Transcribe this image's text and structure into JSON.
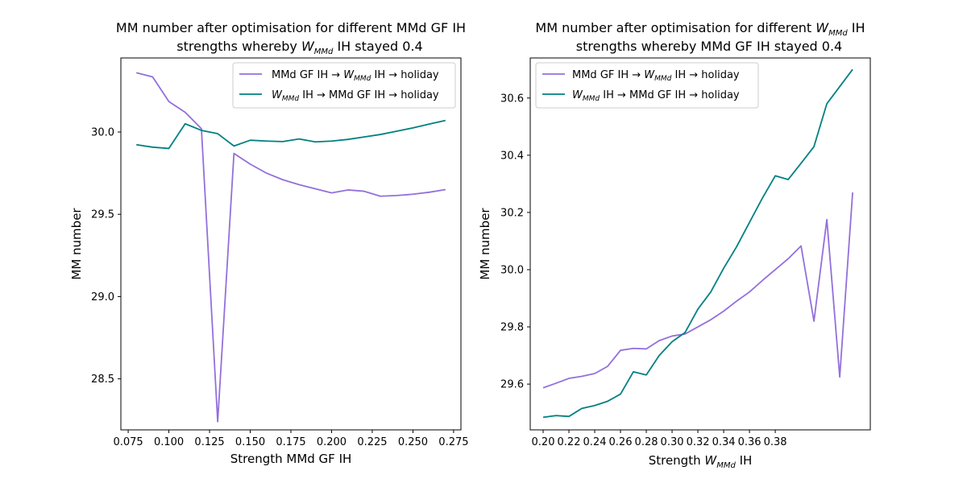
{
  "chart_data": [
    {
      "type": "line",
      "title": [
        "MM number after optimisation for different MMd GF IH",
        "strengths whereby W_MMd IH stayed 0.4"
      ],
      "xlabel": "Strength MMd GF IH",
      "ylabel": "MM number",
      "xlim": [
        0.0705,
        0.2795
      ],
      "ylim": [
        28.19,
        30.45
      ],
      "xticks": [
        "0.075",
        "0.100",
        "0.125",
        "0.150",
        "0.175",
        "0.200",
        "0.225",
        "0.250",
        "0.275"
      ],
      "xtick_values": [
        0.075,
        0.1,
        0.125,
        0.15,
        0.175,
        0.2,
        0.225,
        0.25,
        0.275
      ],
      "yticks": [
        "28.5",
        "29.0",
        "29.5",
        "30.0"
      ],
      "ytick_values": [
        28.5,
        29.0,
        29.5,
        30.0
      ],
      "legend_position": "upper right",
      "x": [
        0.08,
        0.09,
        0.1,
        0.11,
        0.12,
        0.13,
        0.14,
        0.15,
        0.16,
        0.17,
        0.18,
        0.19,
        0.2,
        0.21,
        0.22,
        0.23,
        0.24,
        0.25,
        0.26,
        0.27
      ],
      "series": [
        {
          "name": "MMd GF IH → W_MMd IH → holiday",
          "color": "#9370db",
          "values": [
            30.36,
            30.335,
            30.185,
            30.12,
            30.02,
            28.24,
            29.87,
            29.805,
            29.75,
            29.71,
            29.68,
            29.655,
            29.63,
            29.648,
            29.64,
            29.61,
            29.614,
            29.622,
            29.634,
            29.65
          ]
        },
        {
          "name": "W_MMd IH → MMd GF IH → holiday",
          "color": "#008080",
          "values": [
            29.923,
            29.908,
            29.9,
            30.05,
            30.01,
            29.99,
            29.915,
            29.95,
            29.945,
            29.942,
            29.958,
            29.94,
            29.945,
            29.955,
            29.97,
            29.985,
            30.005,
            30.025,
            30.048,
            30.07
          ]
        }
      ]
    },
    {
      "type": "line",
      "title": [
        "MM number after optimisation for different W_MMd IH",
        "strengths whereby MMd GF IH stayed 0.4"
      ],
      "xlabel": "Strength W_MMd IH",
      "ylabel": "MM number",
      "xlim": [
        0.19,
        0.4537
      ],
      "ylim": [
        29.44,
        30.74
      ],
      "xticks": [
        "0.20",
        "0.22",
        "0.24",
        "0.26",
        "0.28",
        "0.30",
        "0.32",
        "0.34",
        "0.36",
        "0.38"
      ],
      "xtick_values": [
        0.2,
        0.22,
        0.24,
        0.26,
        0.28,
        0.3,
        0.32,
        0.34,
        0.36,
        0.38
      ],
      "yticks": [
        "29.6",
        "29.8",
        "30.0",
        "30.2",
        "30.4",
        "30.6"
      ],
      "ytick_values": [
        29.6,
        29.8,
        30.0,
        30.2,
        30.4,
        30.6
      ],
      "legend_position": "upper left",
      "x": [
        0.2,
        0.21,
        0.22,
        0.23,
        0.24,
        0.25,
        0.26,
        0.27,
        0.28,
        0.29,
        0.3,
        0.31,
        0.32,
        0.33,
        0.34,
        0.35,
        0.36,
        0.37,
        0.38,
        0.39,
        0.4,
        0.41,
        0.42,
        0.43,
        0.44
      ],
      "series": [
        {
          "name": "MMd GF IH → W_MMd IH → holiday",
          "color": "#9370db",
          "values": [
            29.587,
            29.603,
            29.62,
            29.627,
            29.637,
            29.662,
            29.718,
            29.725,
            29.723,
            29.752,
            29.768,
            29.775,
            29.8,
            29.825,
            29.855,
            29.89,
            29.922,
            29.962,
            30.0,
            30.038,
            30.083,
            29.82,
            30.175,
            29.625,
            30.27
          ]
        },
        {
          "name": "W_MMd IH → MMd GF IH → holiday",
          "color": "#008080",
          "values": [
            29.484,
            29.49,
            29.487,
            29.515,
            29.525,
            29.54,
            29.565,
            29.643,
            29.632,
            29.7,
            29.748,
            29.78,
            29.862,
            29.922,
            30.005,
            30.08,
            30.165,
            30.25,
            30.328,
            30.315,
            30.372,
            30.43,
            30.58,
            30.64,
            30.7
          ]
        }
      ]
    }
  ]
}
